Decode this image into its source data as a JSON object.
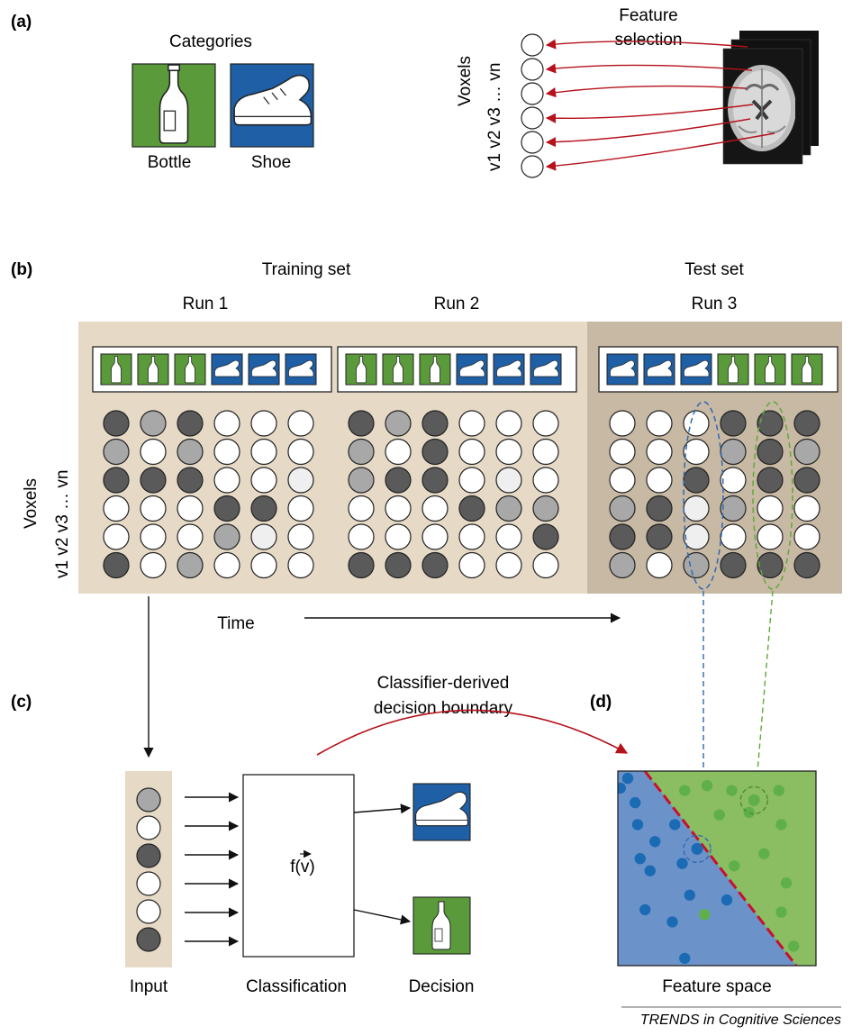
{
  "panel_labels": {
    "a": "(a)",
    "b": "(b)",
    "c": "(c)",
    "d": "(d)"
  },
  "colors": {
    "bottle_bg": "#5a9a3a",
    "shoe_bg": "#1e5fa5",
    "tan": "#e6dac7",
    "tan_dark": "#c7b9a3",
    "arrow_red": "#b5121b",
    "space_blue": "#6c93c9",
    "space_green": "#8bbd63",
    "dot_blue": "#1b6ab4",
    "dot_green": "#5fb04a",
    "boundary": "#c8102e",
    "shade_dark": "#5a5a5a",
    "shade_mid": "#a8a8a8",
    "shade_light": "#efefef",
    "shade_white": "#ffffff"
  },
  "icons": {
    "bottle": "bottle-icon",
    "shoe": "shoe-icon",
    "brain": "brain-slice-image"
  },
  "panel_a": {
    "categories_title": "Categories",
    "bottle_label": "Bottle",
    "shoe_label": "Shoe",
    "feature_selection": [
      "Feature",
      "selection"
    ],
    "voxels_label": "Voxels",
    "voxel_index": "v1 v2 v3 … vn"
  },
  "panel_b": {
    "training_set": "Training set",
    "test_set": "Test set",
    "runs": [
      {
        "label": "Run 1",
        "stimuli": [
          "bottle",
          "bottle",
          "bottle",
          "shoe",
          "shoe",
          "shoe"
        ],
        "grid": [
          [
            3,
            2,
            3,
            0,
            0,
            0
          ],
          [
            2,
            0,
            2,
            0,
            0,
            0
          ],
          [
            3,
            3,
            3,
            0,
            0,
            1
          ],
          [
            0,
            0,
            0,
            3,
            3,
            0
          ],
          [
            0,
            0,
            0,
            2,
            1,
            0
          ],
          [
            3,
            0,
            2,
            0,
            0,
            0
          ]
        ]
      },
      {
        "label": "Run 2",
        "stimuli": [
          "bottle",
          "bottle",
          "bottle",
          "shoe",
          "shoe",
          "shoe"
        ],
        "grid": [
          [
            3,
            2,
            3,
            0,
            0,
            0
          ],
          [
            2,
            0,
            3,
            0,
            0,
            0
          ],
          [
            2,
            3,
            3,
            0,
            1,
            0
          ],
          [
            0,
            0,
            0,
            3,
            2,
            2
          ],
          [
            0,
            0,
            0,
            0,
            0,
            3
          ],
          [
            3,
            3,
            3,
            0,
            0,
            0
          ]
        ]
      },
      {
        "label": "Run 3",
        "stimuli": [
          "shoe",
          "shoe",
          "shoe",
          "bottle",
          "bottle",
          "bottle"
        ],
        "grid": [
          [
            0,
            0,
            0,
            3,
            3,
            3
          ],
          [
            0,
            0,
            0,
            2,
            3,
            2
          ],
          [
            0,
            0,
            3,
            0,
            3,
            3
          ],
          [
            2,
            3,
            1,
            2,
            0,
            0
          ],
          [
            3,
            3,
            1,
            0,
            0,
            0
          ],
          [
            2,
            0,
            2,
            3,
            3,
            3
          ]
        ]
      }
    ],
    "voxels_label": "Voxels",
    "voxel_index": "v1 v2 v3 … vn",
    "time_label": "Time"
  },
  "panel_c": {
    "boundary_caption": [
      "Classifier-derived",
      "decision boundary"
    ],
    "input_label": "Input",
    "input_voxels": [
      2,
      0,
      3,
      0,
      0,
      3
    ],
    "classification_label": "Classification",
    "function_label": "f(v)",
    "decision_label": "Decision"
  },
  "panel_d": {
    "feature_space_label": "Feature space",
    "blue_points": [
      [
        0.4,
        0.3
      ],
      [
        0.1,
        0.7
      ],
      [
        0.7,
        1.3
      ],
      [
        0.8,
        2.2
      ],
      [
        2.3,
        2.2
      ],
      [
        1.5,
        2.9
      ],
      [
        0.9,
        3.6
      ],
      [
        2.6,
        3.8
      ],
      [
        1.3,
        4.1
      ],
      [
        2.9,
        5.1
      ],
      [
        1.1,
        5.7
      ],
      [
        2.2,
        6.2
      ],
      [
        4.4,
        5.3
      ],
      [
        2.7,
        7.7
      ]
    ],
    "green_points": [
      [
        2.7,
        0.8
      ],
      [
        3.6,
        0.6
      ],
      [
        4.6,
        0.8
      ],
      [
        6.5,
        0.8
      ],
      [
        4.1,
        1.8
      ],
      [
        5.3,
        1.7
      ],
      [
        6.6,
        2.2
      ],
      [
        5.9,
        3.4
      ],
      [
        4.7,
        3.9
      ],
      [
        6.8,
        4.6
      ],
      [
        3.5,
        5.9
      ],
      [
        6.6,
        5.8
      ],
      [
        7.1,
        7.2
      ]
    ],
    "highlight_blue": [
      3.2,
      3.2
    ],
    "highlight_green": [
      5.5,
      1.2
    ]
  },
  "credit": "TRENDS in Cognitive Sciences"
}
